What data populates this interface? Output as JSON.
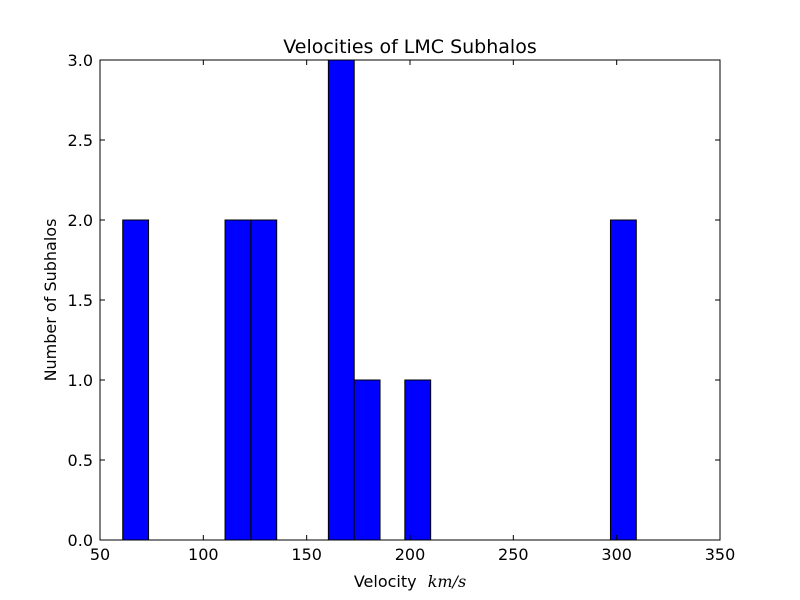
{
  "chart_data": {
    "type": "bar",
    "title": "Velocities of LMC Subhalos",
    "xlabel": "Velocity",
    "xlabel_unit": "km/s",
    "ylabel": "Number of Subhalos",
    "xlim": [
      50,
      350
    ],
    "ylim": [
      0,
      3.0
    ],
    "xticks": [
      "50",
      "100",
      "150",
      "200",
      "250",
      "300",
      "350"
    ],
    "yticks": [
      "0.0",
      "0.5",
      "1.0",
      "1.5",
      "2.0",
      "2.5",
      "3.0"
    ],
    "bar_color": "#0000ff",
    "bins": [
      {
        "x0": 61.0,
        "x1": 73.5,
        "count": 2
      },
      {
        "x0": 110.5,
        "x1": 123.0,
        "count": 2
      },
      {
        "x0": 123.0,
        "x1": 135.5,
        "count": 2
      },
      {
        "x0": 160.5,
        "x1": 173.0,
        "count": 3
      },
      {
        "x0": 173.0,
        "x1": 185.5,
        "count": 1
      },
      {
        "x0": 197.5,
        "x1": 210.0,
        "count": 1
      },
      {
        "x0": 297.0,
        "x1": 309.5,
        "count": 2
      }
    ],
    "grid": false,
    "legend": "none"
  }
}
